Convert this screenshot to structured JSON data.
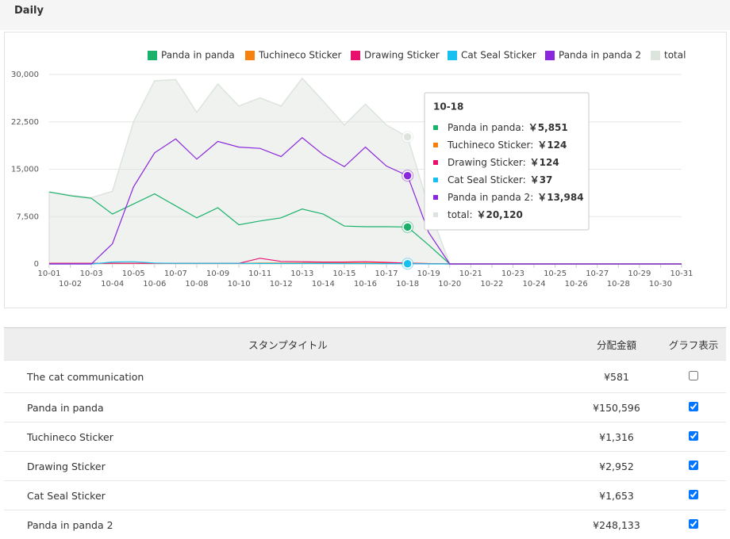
{
  "header": {
    "title": "Daily"
  },
  "chart_data": {
    "type": "line",
    "categories": [
      "10-01",
      "10-02",
      "10-03",
      "10-04",
      "10-05",
      "10-06",
      "10-07",
      "10-08",
      "10-09",
      "10-10",
      "10-11",
      "10-12",
      "10-13",
      "10-14",
      "10-15",
      "10-16",
      "10-17",
      "10-18",
      "10-19",
      "10-20",
      "10-21",
      "10-22",
      "10-23",
      "10-24",
      "10-25",
      "10-26",
      "10-27",
      "10-28",
      "10-29",
      "10-30",
      "10-31"
    ],
    "series": [
      {
        "name": "Panda in panda",
        "color": "#1ab26b",
        "values": [
          11400,
          10800,
          10400,
          7900,
          9500,
          11100,
          9200,
          7300,
          8900,
          6200,
          6800,
          7300,
          8700,
          7900,
          6000,
          5900,
          5900,
          5851,
          3000,
          0,
          0,
          0,
          0,
          0,
          0,
          0,
          0,
          0,
          0,
          0,
          0
        ]
      },
      {
        "name": "Tuchineco Sticker",
        "color": "#f7810f",
        "values": [
          100,
          100,
          100,
          100,
          100,
          100,
          100,
          100,
          100,
          100,
          150,
          150,
          150,
          150,
          150,
          150,
          150,
          124,
          60,
          0,
          0,
          0,
          0,
          0,
          0,
          0,
          0,
          0,
          0,
          0,
          0
        ]
      },
      {
        "name": "Drawing Sticker",
        "color": "#e8126e",
        "values": [
          100,
          100,
          100,
          100,
          100,
          100,
          100,
          100,
          100,
          100,
          900,
          400,
          350,
          300,
          300,
          350,
          250,
          124,
          50,
          0,
          0,
          0,
          0,
          0,
          0,
          0,
          0,
          0,
          0,
          0,
          0
        ]
      },
      {
        "name": "Cat Seal Sticker",
        "color": "#18c0f0",
        "values": [
          0,
          0,
          0,
          300,
          350,
          150,
          100,
          100,
          100,
          100,
          80,
          80,
          80,
          80,
          60,
          60,
          50,
          37,
          20,
          0,
          0,
          0,
          0,
          0,
          0,
          0,
          0,
          0,
          0,
          0,
          0
        ]
      },
      {
        "name": "Panda in panda 2",
        "color": "#8a26dc",
        "values": [
          0,
          0,
          0,
          3200,
          12200,
          17600,
          19800,
          16600,
          19400,
          18500,
          18300,
          17000,
          20000,
          17300,
          15400,
          18500,
          15500,
          13984,
          5000,
          0,
          0,
          0,
          0,
          0,
          0,
          0,
          0,
          0,
          0,
          0,
          0
        ]
      },
      {
        "name": "total",
        "color": "#dde3dd",
        "area": true,
        "values": [
          11400,
          10900,
          10500,
          11500,
          22500,
          29000,
          29200,
          24000,
          28500,
          25000,
          26300,
          25000,
          29400,
          25800,
          22000,
          25300,
          22000,
          20120,
          9000,
          0,
          0,
          0,
          0,
          0,
          0,
          0,
          0,
          0,
          0,
          0,
          0
        ]
      }
    ],
    "ylim": [
      0,
      30000
    ],
    "yticks": [
      0,
      {
        "value": 7500,
        "label": "7,500"
      },
      {
        "value": 15000,
        "label": "15,000"
      },
      {
        "value": 22500,
        "label": "22,500"
      },
      {
        "value": 30000,
        "label": "30,000"
      }
    ],
    "grid": true,
    "legend": "top"
  },
  "tooltip": {
    "items": [
      {
        "label": "Panda in panda:",
        "value": "￥5,851"
      },
      {
        "label": "Tuchineco Sticker:",
        "value": "￥124"
      },
      {
        "label": "Drawing Sticker:",
        "value": "￥124"
      },
      {
        "label": "Cat Seal Sticker:",
        "value": "￥37"
      },
      {
        "label": "Panda in panda 2:",
        "value": "￥13,984"
      },
      {
        "label": "total:",
        "value": "￥20,120"
      }
    ]
  },
  "table": {
    "columns": [
      "スタンプタイトル",
      "分配金額",
      "グラフ表示"
    ],
    "rows": [
      [
        "The cat communication",
        "¥581",
        false
      ],
      [
        "Panda in panda",
        "¥150,596",
        true
      ],
      [
        "Tuchineco Sticker",
        "¥1,316",
        true
      ],
      [
        "Drawing Sticker",
        "¥2,952",
        true
      ],
      [
        "Cat Seal Sticker",
        "¥1,653",
        true
      ],
      [
        "Panda in panda 2",
        "¥248,133",
        true
      ]
    ]
  }
}
